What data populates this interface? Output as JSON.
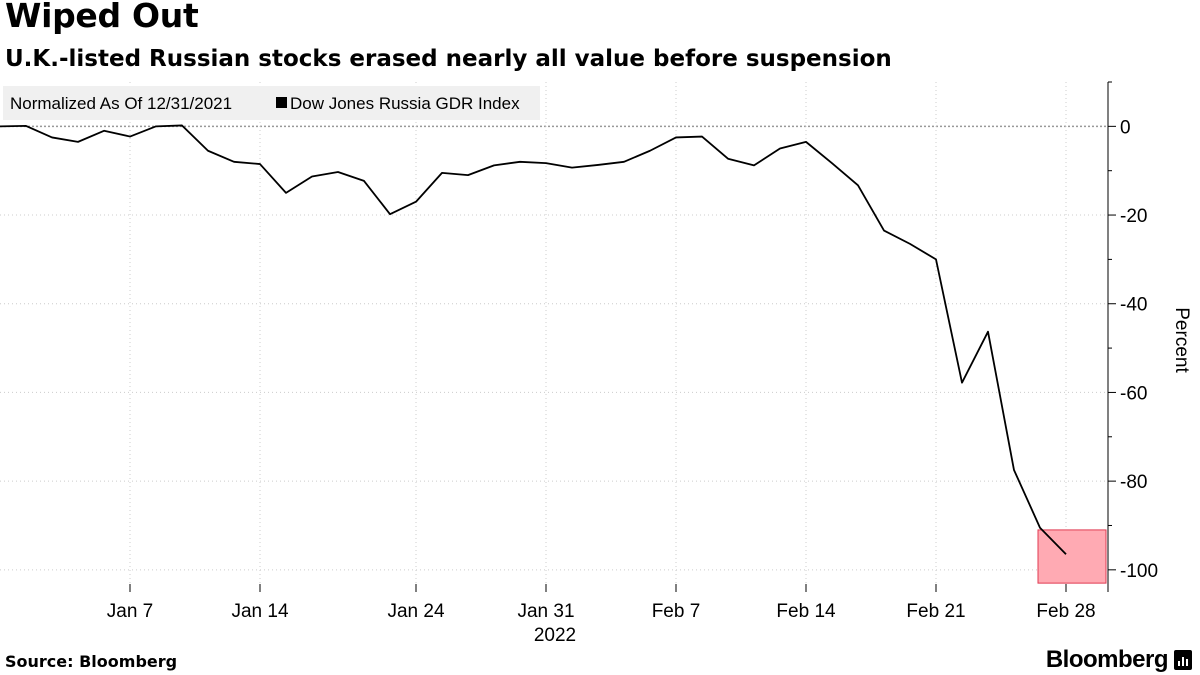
{
  "header": {
    "title": "Wiped Out",
    "subtitle": "U.K.-listed Russian stocks erased nearly all value before suspension"
  },
  "footer": {
    "source": "Source: Bloomberg",
    "brand": "Bloomberg",
    "brand_icon": "bar-chart-icon"
  },
  "colors": {
    "line": "#000000",
    "highlight_fill": "#ffaab3",
    "highlight_stroke": "#e03a52",
    "grid": "#cccccc",
    "zero_line": "#999999",
    "legend_bg": "#f0f0f0"
  },
  "chart_data": {
    "type": "line",
    "title": "Wiped Out",
    "subtitle": "U.K.-listed Russian stocks erased nearly all value before suspension",
    "xlabel": "2022",
    "ylabel": "Percent",
    "ylim": [
      -105,
      10
    ],
    "yticks": [
      0,
      -20,
      -40,
      -60,
      -80,
      -100
    ],
    "y_axis_side": "right",
    "grid": "horizontal dotted",
    "legend": {
      "placement": "top-left",
      "note": "Normalized As Of 12/31/2021",
      "entries": [
        "Dow Jones Russia GDR Index"
      ]
    },
    "x_ticks": [
      {
        "label": "Jan 7",
        "date": "2022-01-07"
      },
      {
        "label": "Jan 14",
        "date": "2022-01-14"
      },
      {
        "label": "Jan 24",
        "date": "2022-01-24"
      },
      {
        "label": "Jan 31",
        "date": "2022-01-31"
      },
      {
        "label": "Feb 7",
        "date": "2022-02-07"
      },
      {
        "label": "Feb 14",
        "date": "2022-02-14"
      },
      {
        "label": "Feb 21",
        "date": "2022-02-21"
      },
      {
        "label": "Feb 28",
        "date": "2022-02-28"
      }
    ],
    "series": [
      {
        "name": "Dow Jones Russia GDR Index",
        "points": [
          {
            "x": "2021-12-31",
            "y": 0
          },
          {
            "x": "2022-01-03",
            "y": 0.1
          },
          {
            "x": "2022-01-04",
            "y": -2.5
          },
          {
            "x": "2022-01-05",
            "y": -3.5
          },
          {
            "x": "2022-01-06",
            "y": -1
          },
          {
            "x": "2022-01-07",
            "y": -2.3
          },
          {
            "x": "2022-01-10",
            "y": 0
          },
          {
            "x": "2022-01-11",
            "y": 0.2
          },
          {
            "x": "2022-01-12",
            "y": -5.5
          },
          {
            "x": "2022-01-13",
            "y": -8
          },
          {
            "x": "2022-01-14",
            "y": -8.5
          },
          {
            "x": "2022-01-17",
            "y": -15
          },
          {
            "x": "2022-01-18",
            "y": -11.3
          },
          {
            "x": "2022-01-19",
            "y": -10.3
          },
          {
            "x": "2022-01-20",
            "y": -12.3
          },
          {
            "x": "2022-01-21",
            "y": -19.8
          },
          {
            "x": "2022-01-24",
            "y": -17
          },
          {
            "x": "2022-01-25",
            "y": -10.5
          },
          {
            "x": "2022-01-26",
            "y": -11
          },
          {
            "x": "2022-01-27",
            "y": -8.8
          },
          {
            "x": "2022-01-28",
            "y": -8
          },
          {
            "x": "2022-01-31",
            "y": -8.3
          },
          {
            "x": "2022-02-01",
            "y": -9.3
          },
          {
            "x": "2022-02-02",
            "y": -8.7
          },
          {
            "x": "2022-02-03",
            "y": -8
          },
          {
            "x": "2022-02-04",
            "y": -5.5
          },
          {
            "x": "2022-02-07",
            "y": -2.5
          },
          {
            "x": "2022-02-08",
            "y": -2.3
          },
          {
            "x": "2022-02-09",
            "y": -7.3
          },
          {
            "x": "2022-02-10",
            "y": -8.8
          },
          {
            "x": "2022-02-11",
            "y": -5
          },
          {
            "x": "2022-02-14",
            "y": -3.5
          },
          {
            "x": "2022-02-15",
            "y": -8.3
          },
          {
            "x": "2022-02-16",
            "y": -13.3
          },
          {
            "x": "2022-02-17",
            "y": -23.5
          },
          {
            "x": "2022-02-18",
            "y": -26.5
          },
          {
            "x": "2022-02-21",
            "y": -30
          },
          {
            "x": "2022-02-22",
            "y": -57.8
          },
          {
            "x": "2022-02-23",
            "y": -46.3
          },
          {
            "x": "2022-02-24",
            "y": -77.5
          },
          {
            "x": "2022-02-25",
            "y": -90.5
          },
          {
            "x": "2022-02-28",
            "y": -96.5
          }
        ]
      }
    ],
    "highlight_box": {
      "x_range": [
        "2022-02-25",
        "2022-02-28"
      ],
      "y_range": [
        -103,
        -91
      ]
    }
  }
}
